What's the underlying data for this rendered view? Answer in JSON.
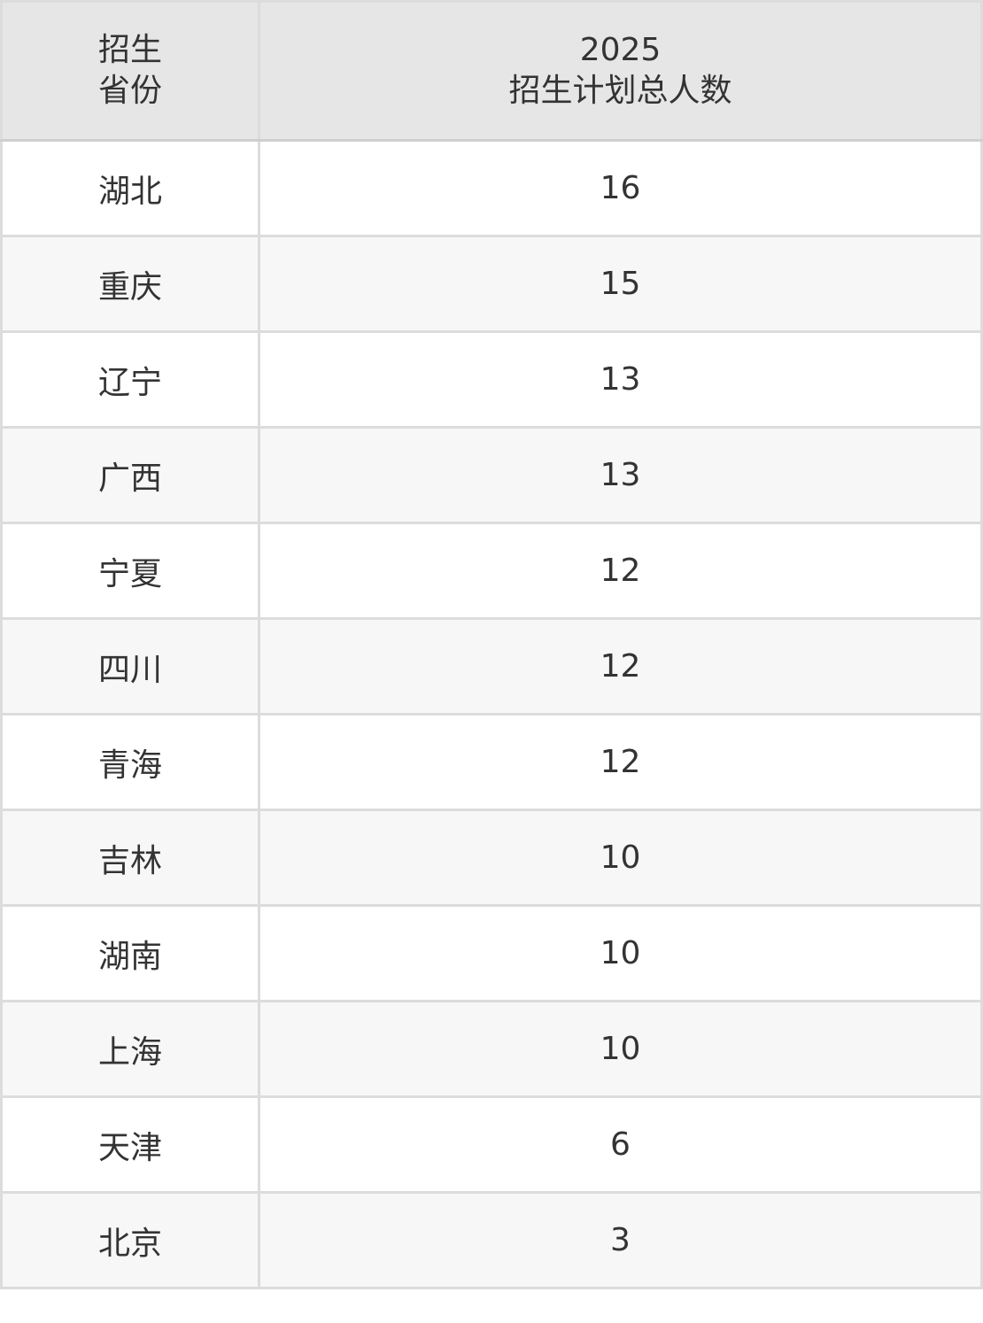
{
  "table": {
    "headers": [
      {
        "line1": "招生",
        "line2": "省份"
      },
      {
        "line1": "2025",
        "line2": "招生计划总人数"
      }
    ],
    "rows": [
      {
        "province": "湖北",
        "total": "16"
      },
      {
        "province": "重庆",
        "total": "15"
      },
      {
        "province": "辽宁",
        "total": "13"
      },
      {
        "province": "广西",
        "total": "13"
      },
      {
        "province": "宁夏",
        "total": "12"
      },
      {
        "province": "四川",
        "total": "12"
      },
      {
        "province": "青海",
        "total": "12"
      },
      {
        "province": "吉林",
        "total": "10"
      },
      {
        "province": "湖南",
        "total": "10"
      },
      {
        "province": "上海",
        "total": "10"
      },
      {
        "province": "天津",
        "total": "6"
      },
      {
        "province": "北京",
        "total": "3"
      }
    ]
  }
}
